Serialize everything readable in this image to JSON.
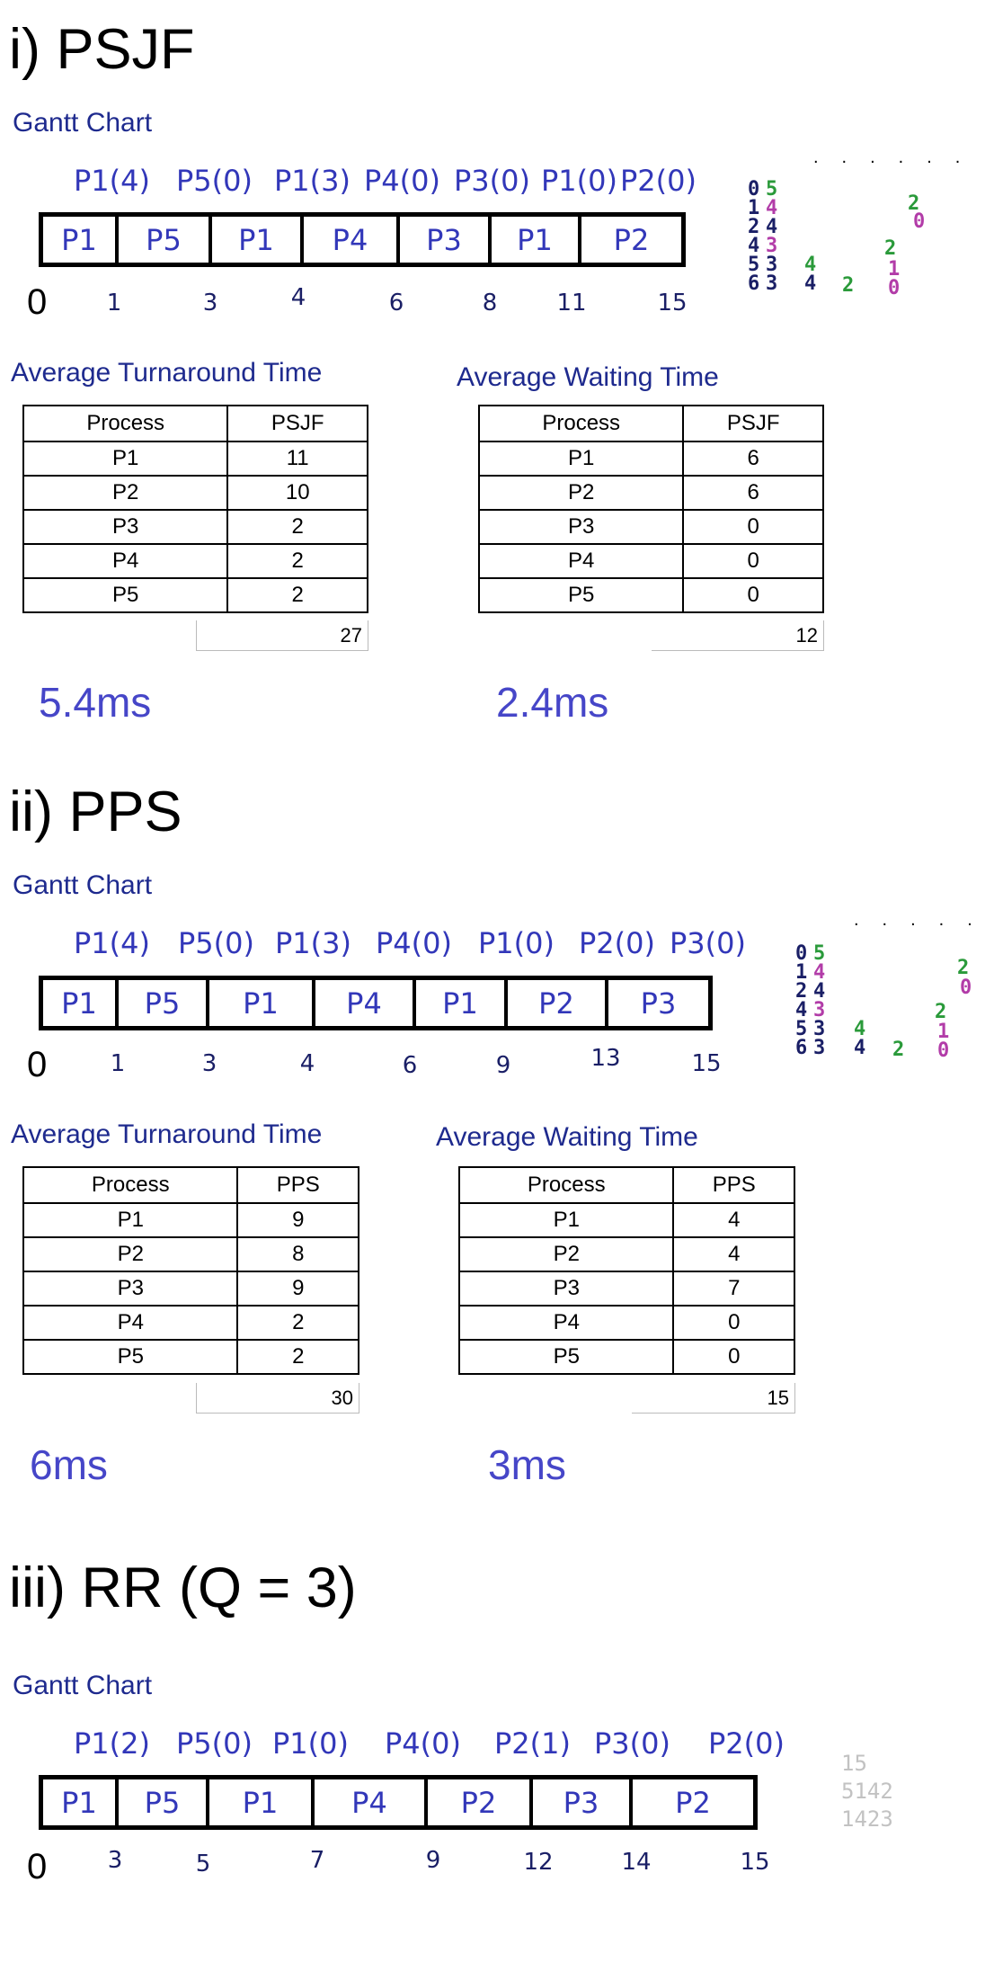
{
  "psjf": {
    "title": "i) PSJF",
    "gantt_label": "Gantt Chart",
    "annotations": [
      "P1(4)",
      "P5(0)",
      "P1(3)",
      "P4(0)",
      "P3(0)",
      "P1(0)",
      "P2(0)"
    ],
    "blocks": [
      "P1",
      "P5",
      "P1",
      "P4",
      "P3",
      "P1",
      "P2"
    ],
    "zero": "0",
    "ticks": [
      "1",
      "3",
      "4",
      "6",
      "8",
      "11",
      "15"
    ],
    "turnaround": {
      "heading": "Average Turnaround Time",
      "columns": [
        "Process",
        "PSJF"
      ],
      "rows": [
        [
          "P1",
          "11"
        ],
        [
          "P2",
          "10"
        ],
        [
          "P3",
          "2"
        ],
        [
          "P4",
          "2"
        ],
        [
          "P5",
          "2"
        ]
      ],
      "total": "27",
      "average": "5.4ms"
    },
    "waiting": {
      "heading": "Average Waiting Time",
      "columns": [
        "Process",
        "PSJF"
      ],
      "rows": [
        [
          "P1",
          "6"
        ],
        [
          "P2",
          "6"
        ],
        [
          "P3",
          "0"
        ],
        [
          "P4",
          "0"
        ],
        [
          "P5",
          "0"
        ]
      ],
      "total": "12",
      "average": "2.4ms"
    }
  },
  "pps": {
    "title": "ii) PPS",
    "gantt_label": "Gantt Chart",
    "annotations": [
      "P1(4)",
      "P5(0)",
      "P1(3)",
      "P4(0)",
      "P1(0)",
      "P2(0)",
      "P3(0)"
    ],
    "blocks": [
      "P1",
      "P5",
      "P1",
      "P4",
      "P1",
      "P2",
      "P3"
    ],
    "zero": "0",
    "ticks": [
      "1",
      "3",
      "4",
      "6",
      "9",
      "13",
      "15"
    ],
    "turnaround": {
      "heading": "Average Turnaround Time",
      "columns": [
        "Process",
        "PPS"
      ],
      "rows": [
        [
          "P1",
          "9"
        ],
        [
          "P2",
          "8"
        ],
        [
          "P3",
          "9"
        ],
        [
          "P4",
          "2"
        ],
        [
          "P5",
          "2"
        ]
      ],
      "total": "30",
      "average": "6ms"
    },
    "waiting": {
      "heading": "Average Waiting Time",
      "columns": [
        "Process",
        "PPS"
      ],
      "rows": [
        [
          "P1",
          "4"
        ],
        [
          "P2",
          "4"
        ],
        [
          "P3",
          "7"
        ],
        [
          "P4",
          "0"
        ],
        [
          "P5",
          "0"
        ]
      ],
      "total": "15",
      "average": "3ms"
    }
  },
  "rr": {
    "title": "iii) RR (Q = 3)",
    "gantt_label": "Gantt Chart",
    "annotations": [
      "P1(2)",
      "P5(0)",
      "P1(0)",
      "P4(0)",
      "P2(1)",
      "P3(0)",
      "P2(0)"
    ],
    "blocks": [
      "P1",
      "P5",
      "P1",
      "P4",
      "P2",
      "P3",
      "P2"
    ],
    "zero": "0",
    "ticks": [
      "3",
      "5",
      "7",
      "9",
      "12",
      "14",
      "15"
    ],
    "scratch": [
      "15",
      "5142",
      "1423"
    ]
  },
  "scratch_notes": {
    "col_a": [
      "0",
      "1",
      "2",
      "4",
      "5",
      "6"
    ],
    "col_b": [
      "5",
      "4",
      "4",
      "3",
      "3",
      "3"
    ],
    "col_c": [
      "4",
      "4"
    ],
    "col_d": [
      "2"
    ],
    "col_e": [
      "2",
      "0",
      "2",
      "1",
      "0"
    ]
  }
}
